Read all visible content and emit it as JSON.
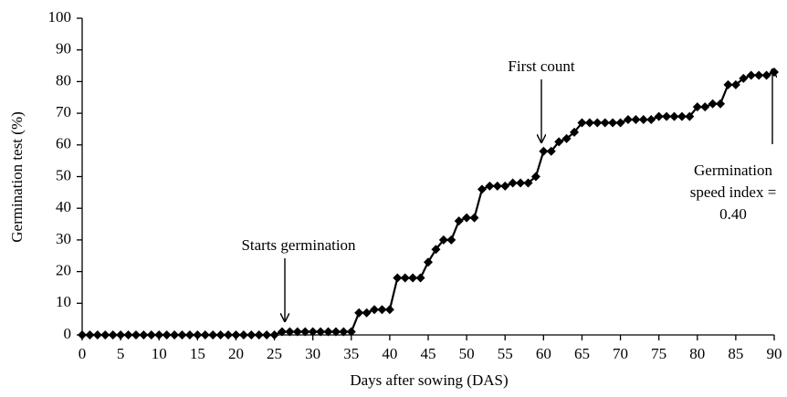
{
  "chart_data": {
    "type": "line",
    "x_label": "Days after sowing (DAS)",
    "y_label": "Germination test (%)",
    "x": [
      0,
      1,
      2,
      3,
      4,
      5,
      6,
      7,
      8,
      9,
      10,
      11,
      12,
      13,
      14,
      15,
      16,
      17,
      18,
      19,
      20,
      21,
      22,
      23,
      24,
      25,
      26,
      27,
      28,
      29,
      30,
      31,
      32,
      33,
      34,
      35,
      36,
      37,
      38,
      39,
      40,
      41,
      42,
      43,
      44,
      45,
      46,
      47,
      48,
      49,
      50,
      51,
      52,
      53,
      54,
      55,
      56,
      57,
      58,
      59,
      60,
      61,
      62,
      63,
      64,
      65,
      66,
      67,
      68,
      69,
      70,
      71,
      72,
      73,
      74,
      75,
      76,
      77,
      78,
      79,
      80,
      81,
      82,
      83,
      84,
      85,
      86,
      87,
      88,
      89,
      90
    ],
    "series": [
      {
        "name": "Germination",
        "color": "#000000",
        "values": [
          0,
          0,
          0,
          0,
          0,
          0,
          0,
          0,
          0,
          0,
          0,
          0,
          0,
          0,
          0,
          0,
          0,
          0,
          0,
          0,
          0,
          0,
          0,
          0,
          0,
          0,
          1,
          1,
          1,
          1,
          1,
          1,
          1,
          1,
          1,
          1,
          7,
          7,
          8,
          8,
          8,
          18,
          18,
          18,
          18,
          23,
          27,
          30,
          30,
          36,
          37,
          37,
          46,
          47,
          47,
          47,
          48,
          48,
          48,
          50,
          58,
          58,
          61,
          62,
          64,
          67,
          67,
          67,
          67,
          67,
          67,
          68,
          68,
          68,
          68,
          69,
          69,
          69,
          69,
          69,
          72,
          72,
          73,
          73,
          79,
          79,
          81,
          82,
          82,
          82,
          83
        ]
      }
    ],
    "annotations": [
      {
        "lines": [
          "Starts germination"
        ]
      },
      {
        "lines": [
          "First count"
        ]
      },
      {
        "lines": [
          "Germination",
          "speed index =",
          "0.40"
        ]
      }
    ],
    "xlim": [
      0,
      90
    ],
    "xticks": [
      0,
      5,
      10,
      15,
      20,
      25,
      30,
      35,
      40,
      45,
      50,
      55,
      60,
      65,
      70,
      75,
      80,
      85,
      90
    ],
    "ylim": [
      0,
      100
    ],
    "yticks": [
      0,
      10,
      20,
      30,
      40,
      50,
      60,
      70,
      80,
      90,
      100
    ],
    "grid": false
  }
}
